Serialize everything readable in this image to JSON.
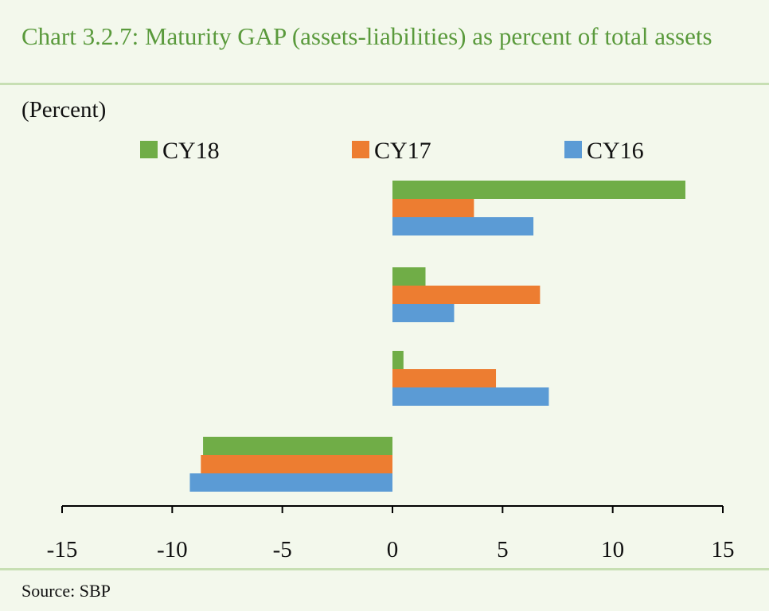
{
  "header": {
    "title": "Chart 3.2.7: Maturity GAP (assets-liabilities) as percent of total assets",
    "unit": "(Percent)"
  },
  "footer": {
    "source": "Source: SBP"
  },
  "colors": {
    "CY18": "#70ad47",
    "CY17": "#ed7d31",
    "CY16": "#5b9bd5",
    "title": "#5a9a3c"
  },
  "chart_data": {
    "type": "bar",
    "orientation": "horizontal",
    "categories": [
      "",
      "",
      "",
      ""
    ],
    "series": [
      {
        "name": "CY18",
        "values": [
          13.3,
          1.5,
          0.5,
          -8.6
        ]
      },
      {
        "name": "CY17",
        "values": [
          3.7,
          6.7,
          4.7,
          -8.7
        ]
      },
      {
        "name": "CY16",
        "values": [
          6.4,
          2.8,
          7.1,
          -9.2
        ]
      }
    ],
    "xlim": [
      -15,
      15
    ],
    "xticks": [
      -15,
      -10,
      -5,
      0,
      5,
      10,
      15
    ],
    "title": "Chart 3.2.7: Maturity GAP (assets-liabilities) as percent of total assets",
    "xlabel": "",
    "ylabel": "(Percent)",
    "legend": "top",
    "grid": false
  }
}
